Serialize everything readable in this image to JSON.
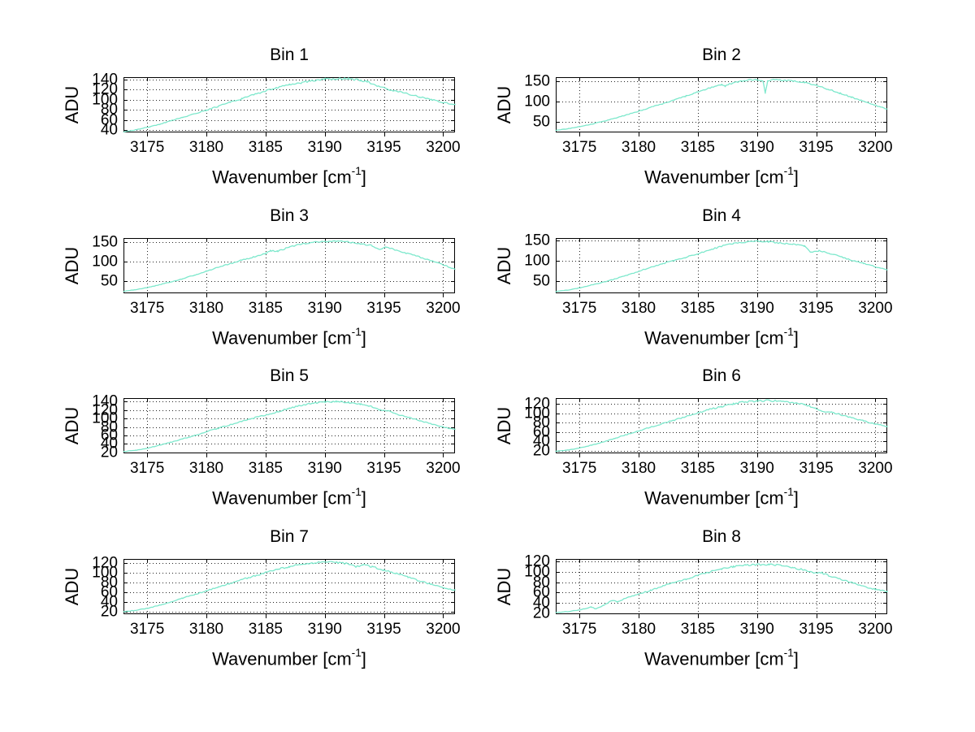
{
  "figure": {
    "background": "#ffffff",
    "line_color": "#7de8cc",
    "axis_color": "#000000",
    "grid_style": "dotted",
    "ylabel": "ADU",
    "xlabel_prefix": "Wavenumber [cm",
    "xlabel_sup": "-1",
    "xlabel_suffix": "]",
    "x_ticks": [
      3175,
      3180,
      3185,
      3190,
      3195,
      3200
    ],
    "xlim": [
      3173,
      3201
    ]
  },
  "chart_data": [
    {
      "type": "line",
      "title": "Bin 1",
      "xlabel": "Wavenumber [cm-1]",
      "ylabel": "ADU",
      "xlim": [
        3173,
        3201
      ],
      "ylim": [
        35,
        145
      ],
      "grid": true,
      "x_ticks": [
        3175,
        3180,
        3185,
        3190,
        3195,
        3200
      ],
      "y_ticks": [
        40,
        60,
        80,
        100,
        120,
        140
      ],
      "x": [
        3173,
        3174,
        3175,
        3176,
        3177,
        3178,
        3179,
        3180,
        3181,
        3182,
        3183,
        3184,
        3185,
        3186,
        3187,
        3188,
        3189,
        3190,
        3191,
        3192,
        3193,
        3193.6,
        3194.3,
        3195,
        3195.6,
        3196.3,
        3197,
        3198,
        3199,
        3200,
        3201
      ],
      "y": [
        36,
        40,
        45,
        51,
        58,
        65,
        72,
        79,
        87,
        95,
        102,
        110,
        118,
        124,
        130,
        134,
        138,
        141,
        142,
        142,
        139,
        136,
        128,
        124,
        119,
        116,
        112,
        106,
        100,
        95,
        90
      ]
    },
    {
      "type": "line",
      "title": "Bin 2",
      "xlabel": "Wavenumber [cm-1]",
      "ylabel": "ADU",
      "xlim": [
        3173,
        3201
      ],
      "ylim": [
        25,
        160
      ],
      "grid": true,
      "x_ticks": [
        3175,
        3180,
        3185,
        3190,
        3195,
        3200
      ],
      "y_ticks": [
        50,
        100,
        150
      ],
      "x": [
        3173,
        3174,
        3175,
        3176,
        3177,
        3178,
        3179,
        3180,
        3181,
        3182,
        3183,
        3184,
        3185,
        3186,
        3187,
        3187.3,
        3188,
        3189,
        3190,
        3190.5,
        3190.7,
        3190.9,
        3191.5,
        3192,
        3193,
        3194,
        3195,
        3196,
        3197,
        3198,
        3199,
        3200,
        3201
      ],
      "y": [
        30,
        34,
        39,
        45,
        52,
        60,
        68,
        77,
        86,
        95,
        104,
        114,
        124,
        134,
        142,
        138,
        147,
        152,
        154,
        152,
        122,
        151,
        154,
        153,
        151,
        147,
        140,
        131,
        121,
        111,
        101,
        91,
        82
      ]
    },
    {
      "type": "line",
      "title": "Bin 3",
      "xlabel": "Wavenumber [cm-1]",
      "ylabel": "ADU",
      "xlim": [
        3173,
        3201
      ],
      "ylim": [
        20,
        160
      ],
      "grid": true,
      "x_ticks": [
        3175,
        3180,
        3185,
        3190,
        3195,
        3200
      ],
      "y_ticks": [
        50,
        100,
        150
      ],
      "x": [
        3173,
        3174,
        3175,
        3176,
        3177,
        3178,
        3179,
        3180,
        3181,
        3182,
        3183,
        3184,
        3185,
        3185.4,
        3186,
        3187,
        3188,
        3189,
        3190,
        3191,
        3192,
        3193,
        3194,
        3194.6,
        3195.2,
        3196,
        3197,
        3198,
        3199,
        3200,
        3201
      ],
      "y": [
        25,
        29,
        34,
        41,
        49,
        57,
        66,
        76,
        86,
        95,
        104,
        112,
        121,
        128,
        126,
        137,
        145,
        149,
        151,
        152,
        150,
        146,
        141,
        132,
        137,
        130,
        121,
        112,
        103,
        92,
        81
      ]
    },
    {
      "type": "line",
      "title": "Bin 4",
      "xlabel": "Wavenumber [cm-1]",
      "ylabel": "ADU",
      "xlim": [
        3173,
        3201
      ],
      "ylim": [
        20,
        155
      ],
      "grid": true,
      "x_ticks": [
        3175,
        3180,
        3185,
        3190,
        3195,
        3200
      ],
      "y_ticks": [
        50,
        100,
        150
      ],
      "x": [
        3173,
        3174,
        3175,
        3176,
        3177,
        3178,
        3179,
        3180,
        3181,
        3182,
        3183,
        3184,
        3185,
        3186,
        3187,
        3188,
        3189,
        3190,
        3191,
        3192,
        3193,
        3194,
        3194.5,
        3195.2,
        3196,
        3197,
        3198,
        3199,
        3200,
        3201
      ],
      "y": [
        24,
        28,
        33,
        40,
        47,
        55,
        64,
        74,
        83,
        92,
        100,
        108,
        116,
        126,
        135,
        142,
        145,
        147,
        146,
        143,
        140,
        136,
        121,
        124,
        118,
        110,
        101,
        93,
        85,
        78
      ]
    },
    {
      "type": "line",
      "title": "Bin 5",
      "xlabel": "Wavenumber [cm-1]",
      "ylabel": "ADU",
      "xlim": [
        3173,
        3201
      ],
      "ylim": [
        18,
        148
      ],
      "grid": true,
      "x_ticks": [
        3175,
        3180,
        3185,
        3190,
        3195,
        3200
      ],
      "y_ticks": [
        20,
        40,
        60,
        80,
        100,
        120,
        140
      ],
      "x": [
        3173,
        3174,
        3175,
        3176,
        3177,
        3178,
        3179,
        3180,
        3181,
        3182,
        3183,
        3184,
        3185,
        3186,
        3187,
        3188,
        3189,
        3190,
        3191,
        3192,
        3193,
        3194,
        3194.6,
        3195.3,
        3196,
        3197,
        3198,
        3199,
        3200,
        3201
      ],
      "y": [
        22,
        25,
        30,
        37,
        44,
        52,
        60,
        69,
        77,
        85,
        93,
        101,
        108,
        116,
        124,
        131,
        136,
        139,
        140,
        138,
        134,
        128,
        121,
        118,
        111,
        103,
        95,
        87,
        80,
        74
      ]
    },
    {
      "type": "line",
      "title": "Bin 6",
      "xlabel": "Wavenumber [cm-1]",
      "ylabel": "ADU",
      "xlim": [
        3173,
        3201
      ],
      "ylim": [
        15,
        132
      ],
      "grid": true,
      "x_ticks": [
        3175,
        3180,
        3185,
        3190,
        3195,
        3200
      ],
      "y_ticks": [
        20,
        40,
        60,
        80,
        100,
        120
      ],
      "x": [
        3173,
        3174,
        3175,
        3176,
        3177,
        3178,
        3179,
        3180,
        3181,
        3182,
        3183,
        3184,
        3185,
        3186,
        3187,
        3188,
        3189,
        3190,
        3191,
        3192,
        3193,
        3194,
        3195,
        3195.6,
        3196.3,
        3197,
        3198,
        3199,
        3200,
        3201
      ],
      "y": [
        19,
        22,
        26,
        32,
        39,
        47,
        55,
        63,
        70,
        78,
        85,
        93,
        100,
        108,
        114,
        120,
        124,
        126,
        127,
        125,
        122,
        118,
        110,
        104,
        102,
        97,
        90,
        84,
        77,
        72
      ]
    },
    {
      "type": "line",
      "title": "Bin 7",
      "xlabel": "Wavenumber [cm-1]",
      "ylabel": "ADU",
      "xlim": [
        3173,
        3201
      ],
      "ylim": [
        15,
        128
      ],
      "grid": true,
      "x_ticks": [
        3175,
        3180,
        3185,
        3190,
        3195,
        3200
      ],
      "y_ticks": [
        20,
        40,
        60,
        80,
        100,
        120
      ],
      "x": [
        3173,
        3174,
        3175,
        3176,
        3177,
        3178,
        3179,
        3180,
        3181,
        3182,
        3183,
        3184,
        3185,
        3186,
        3187,
        3188,
        3189,
        3190,
        3191,
        3192,
        3192.7,
        3193.2,
        3194,
        3195,
        3196,
        3197,
        3198,
        3199,
        3200,
        3201
      ],
      "y": [
        20,
        23,
        27,
        33,
        40,
        48,
        55,
        63,
        70,
        78,
        86,
        93,
        100,
        107,
        112,
        117,
        120,
        122,
        121,
        118,
        112,
        116,
        112,
        105,
        99,
        91,
        83,
        76,
        69,
        64
      ]
    },
    {
      "type": "line",
      "title": "Bin 8",
      "xlabel": "Wavenumber [cm-1]",
      "ylabel": "ADU",
      "xlim": [
        3173,
        3201
      ],
      "ylim": [
        18,
        125
      ],
      "grid": true,
      "x_ticks": [
        3175,
        3180,
        3185,
        3190,
        3195,
        3200
      ],
      "y_ticks": [
        20,
        40,
        60,
        80,
        100,
        120
      ],
      "x": [
        3173,
        3174,
        3175,
        3176,
        3176.4,
        3177,
        3177.8,
        3178.2,
        3179,
        3180,
        3181,
        3182,
        3183,
        3184,
        3185,
        3186,
        3187,
        3188,
        3189,
        3190,
        3191,
        3192,
        3193,
        3194,
        3194.8,
        3195.5,
        3196,
        3197,
        3198,
        3199,
        3200,
        3201
      ],
      "y": [
        21,
        23,
        26,
        32,
        28,
        35,
        45,
        42,
        50,
        57,
        64,
        72,
        79,
        86,
        93,
        100,
        106,
        110,
        113,
        114,
        115,
        112,
        108,
        104,
        97,
        98,
        93,
        86,
        79,
        72,
        66,
        62
      ]
    }
  ]
}
